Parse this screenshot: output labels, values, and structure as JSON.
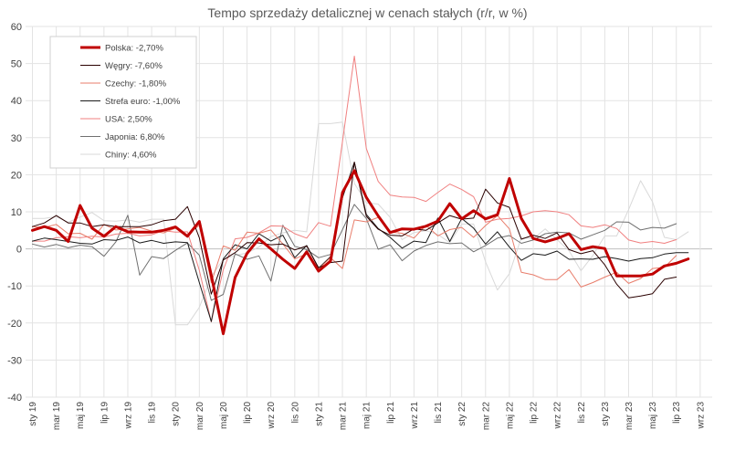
{
  "chart_data": {
    "type": "line",
    "title": "Tempo sprzedaży detalicznej w cenach stałych (r/r, w %)",
    "xlabel": "",
    "ylabel": "",
    "ylim": [
      -40,
      60
    ],
    "yticks": [
      -40,
      -30,
      -20,
      -10,
      0,
      10,
      20,
      30,
      40,
      50,
      60
    ],
    "grid": true,
    "legend_position": "top-left",
    "x": [
      "2019-01",
      "2019-02",
      "2019-03",
      "2019-04",
      "2019-05",
      "2019-06",
      "2019-07",
      "2019-08",
      "2019-09",
      "2019-10",
      "2019-11",
      "2019-12",
      "2020-01",
      "2020-02",
      "2020-03",
      "2020-04",
      "2020-05",
      "2020-06",
      "2020-07",
      "2020-08",
      "2020-09",
      "2020-10",
      "2020-11",
      "2020-12",
      "2021-01",
      "2021-02",
      "2021-03",
      "2021-04",
      "2021-05",
      "2021-06",
      "2021-07",
      "2021-08",
      "2021-09",
      "2021-10",
      "2021-11",
      "2021-12",
      "2022-01",
      "2022-02",
      "2022-03",
      "2022-04",
      "2022-05",
      "2022-06",
      "2022-07",
      "2022-08",
      "2022-09",
      "2022-10",
      "2022-11",
      "2022-12",
      "2023-01",
      "2023-02",
      "2023-03",
      "2023-04",
      "2023-05",
      "2023-06",
      "2023-07",
      "2023-08",
      "2023-09"
    ],
    "tick_labels": [
      "sty 19",
      "mar 19",
      "maj 19",
      "lip 19",
      "wrz 19",
      "lis 19",
      "sty 20",
      "mar 20",
      "maj 20",
      "lip 20",
      "wrz 20",
      "lis 20",
      "sty 21",
      "mar 21",
      "maj 21",
      "lip 21",
      "wrz 21",
      "lis 21",
      "sty 22",
      "mar 22",
      "maj 22",
      "lip 22",
      "wrz 22",
      "lis 22",
      "sty 23",
      "mar 23",
      "maj 23",
      "lip 23",
      "wrz 23"
    ],
    "series": [
      {
        "name": "Polska: -2,70%",
        "color": "#c00000",
        "width": 3,
        "values": [
          5,
          6,
          5,
          2,
          11.7,
          5.6,
          3.4,
          6,
          4.6,
          4.5,
          4.5,
          5,
          5.9,
          3.4,
          7.4,
          -7.1,
          -22.9,
          -7.7,
          -1.2,
          2.7,
          0,
          -2.8,
          -5.3,
          -0.8,
          -6,
          -3.3,
          15.2,
          21.1,
          13.9,
          8.9,
          4.4,
          5.4,
          5.3,
          6.1,
          7.5,
          12.2,
          8.1,
          10.3,
          8.1,
          9.2,
          19,
          8.2,
          2.8,
          1.9,
          2.8,
          4.1,
          -0.2,
          0.6,
          0.1,
          -7.3,
          -7.3,
          -7.3,
          -6.8,
          -4.6,
          -3.9,
          -2.7,
          null
        ]
      },
      {
        "name": "Węgry: -7,60%",
        "color": "#2a0000",
        "width": 1,
        "values": [
          6,
          7,
          9,
          7,
          7,
          6,
          6.5,
          6,
          6,
          6,
          6.5,
          7.6,
          8,
          11.4,
          3,
          -12.2,
          -3,
          -1,
          1.7,
          1.6,
          1.1,
          1.3,
          -0.3,
          0.8,
          -5.1,
          -3.7,
          -3.3,
          23.4,
          8.8,
          5.3,
          3.7,
          3.5,
          5.4,
          5,
          7,
          9,
          8,
          8.3,
          16.1,
          12.4,
          11.2,
          2.6,
          3.7,
          2.8,
          4.3,
          -0.2,
          -1.3,
          -0.5,
          -4.3,
          -9.5,
          -13.2,
          -12.7,
          -12.1,
          -8.2,
          -7.6,
          null,
          null
        ]
      },
      {
        "name": "Czechy: -1,80%",
        "color": "#e87d6b",
        "width": 1,
        "values": [
          6,
          5.8,
          6.6,
          4.1,
          4.2,
          2.6,
          6.6,
          5.1,
          5.4,
          5.8,
          4.8,
          4.3,
          5.6,
          3.7,
          6.4,
          -9.1,
          0.8,
          -0.4,
          4.5,
          4.2,
          5.1,
          1.3,
          -2.7,
          -1.3,
          -5.4,
          -2.4,
          -5.3,
          7.8,
          7.3,
          8.5,
          4.5,
          4.2,
          2.9,
          6.4,
          3.5,
          5.2,
          5.8,
          3.1,
          6.3,
          9,
          5.4,
          -6.3,
          -7,
          -8.3,
          -8.3,
          -5.6,
          -10.3,
          -9.1,
          -7.6,
          -6.3,
          -9.3,
          -8,
          -5.3,
          -5,
          -1.8,
          null,
          null
        ]
      },
      {
        "name": "Strefa euro: -1,00%",
        "color": "#1a1a1a",
        "width": 1,
        "values": [
          2.1,
          2.9,
          2.5,
          2,
          1.5,
          1.3,
          2.5,
          2.3,
          3.2,
          1.6,
          2.3,
          1.5,
          1.9,
          1.7,
          -9.1,
          -19.6,
          -2.7,
          1.1,
          0,
          4.1,
          2.1,
          3.7,
          -2.4,
          0.9,
          -5.2,
          -2.1,
          13.8,
          23.4,
          9.3,
          5.5,
          3.1,
          0.2,
          2.1,
          1.7,
          8.3,
          2,
          8.2,
          5.6,
          1.3,
          4.6,
          0.5,
          -3.1,
          -1.3,
          -1.7,
          -0.6,
          -2.8,
          -2.7,
          -2.8,
          -2.1,
          -2.6,
          -3.3,
          -2.6,
          -2.4,
          -1.4,
          -1,
          -1,
          null
        ]
      },
      {
        "name": "USA: 2,50%",
        "color": "#f08080",
        "width": 1,
        "values": [
          2.1,
          2.1,
          3,
          3.3,
          3,
          3.4,
          3.2,
          4,
          4.2,
          3.5,
          3.8,
          4.9,
          4.5,
          4.6,
          -5.8,
          -19.7,
          -5.7,
          2.7,
          3.1,
          4.3,
          6.2,
          6.1,
          4.1,
          2.9,
          7.1,
          6.1,
          29,
          52,
          27.1,
          18.2,
          14.5,
          14,
          13.9,
          12.8,
          15.2,
          17.5,
          16,
          14.1,
          7.2,
          8,
          8.2,
          8.9,
          10,
          10.3,
          10,
          9.2,
          6.2,
          5.8,
          6.5,
          5.5,
          2.4,
          1.6,
          2,
          1.5,
          2.5,
          null,
          null
        ]
      },
      {
        "name": "Japonia: 6,80%",
        "color": "#707070",
        "width": 1,
        "values": [
          1.3,
          0.5,
          1.2,
          0.3,
          1,
          0.6,
          -2,
          1.9,
          9.1,
          -7.1,
          -2.1,
          -2.6,
          -0.4,
          1.6,
          -1.7,
          -13.9,
          -12.3,
          -1.3,
          -2.8,
          -1.9,
          -8.7,
          6.4,
          0.7,
          -0.2,
          -2.4,
          -1.5,
          5.2,
          12,
          8.2,
          -0.1,
          1.1,
          -3.2,
          -0.6,
          0.9,
          1.9,
          1.4,
          1.6,
          -0.8,
          0.9,
          2.9,
          3.6,
          1.5,
          2.4,
          4.1,
          4.5,
          4.3,
          2.6,
          3.8,
          5,
          7.3,
          7.2,
          5.1,
          5.8,
          5.6,
          6.8,
          null,
          null
        ]
      },
      {
        "name": "Chiny: 4,60%",
        "color": "#d9d9d9",
        "width": 1,
        "values": [
          8.2,
          8.2,
          8.7,
          7.2,
          8.6,
          9.8,
          7.6,
          7.5,
          7.8,
          7.2,
          8,
          8,
          -20.5,
          -20.5,
          -15.8,
          -7.5,
          -2.8,
          -1.8,
          -1.1,
          0.5,
          3.3,
          4.3,
          5,
          4.6,
          33.8,
          33.8,
          34.2,
          17.7,
          12.4,
          12.1,
          8.5,
          2.5,
          4.4,
          4.9,
          3.9,
          1.7,
          6.7,
          6.7,
          -3.5,
          -11.1,
          -6.7,
          3.1,
          2.7,
          5.4,
          2.5,
          -0.5,
          -5.9,
          -1.8,
          3.5,
          3.5,
          10.6,
          18.4,
          12.7,
          3.1,
          2.5,
          4.6,
          null
        ]
      }
    ]
  }
}
